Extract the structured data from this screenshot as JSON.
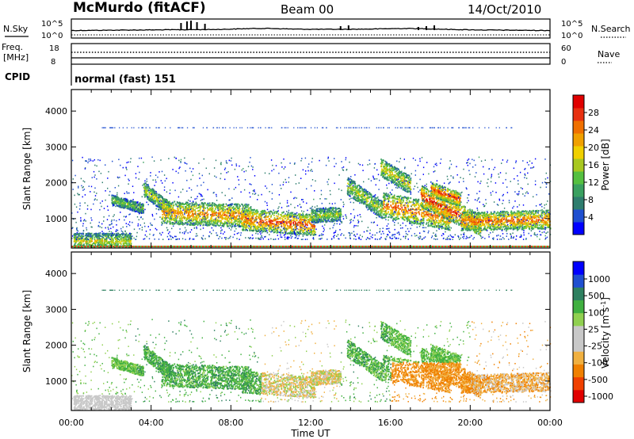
{
  "header": {
    "station": "McMurdo (fitACF)",
    "beam": "Beam 00",
    "date": "14/Oct/2010"
  },
  "top_panel": {
    "nsky_label": "N.Sky",
    "nsky_ticks": [
      "10^5",
      "10^0"
    ],
    "nsearch_label": "N.Search",
    "nsearch_ticks": [
      "10^5",
      "10^0"
    ],
    "freq_label_1": "Freq.",
    "freq_label_2": "[MHz]",
    "freq_ticks": [
      "18",
      "8"
    ],
    "nave_label": "Nave",
    "nave_ticks": [
      "60",
      "0"
    ],
    "cpid_label": "CPID",
    "cpid_value": "normal (fast) 151"
  },
  "colors": {
    "power": [
      "#0000ff",
      "#1f4fd0",
      "#2e7d6e",
      "#3aa060",
      "#55c040",
      "#a8c820",
      "#f0d000",
      "#f0a000",
      "#f07000",
      "#e83010",
      "#e00000"
    ],
    "velocity": [
      "#e00000",
      "#f04000",
      "#f08000",
      "#f0b040",
      "#c8c8c8",
      "#c8c8c8",
      "#90d050",
      "#40b040",
      "#2e8060",
      "#1f4fd0",
      "#0000ff"
    ]
  },
  "chart_data": [
    {
      "type": "heatmap",
      "name": "power",
      "ylabel": "Slant Range [km]",
      "yticks": [
        1000,
        2000,
        3000,
        4000
      ],
      "ylim": [
        180,
        4600
      ],
      "xlim_hours": [
        0,
        24
      ],
      "colorbar_label": "Power [dB]",
      "colorbar_ticks": [
        4,
        8,
        12,
        16,
        20,
        24,
        28
      ],
      "colorbar_range": [
        0,
        32
      ]
    },
    {
      "type": "heatmap",
      "name": "velocity",
      "ylabel": "Slant Range [km]",
      "xlabel": "Time UT",
      "yticks": [
        1000,
        2000,
        3000,
        4000
      ],
      "ylim": [
        180,
        4600
      ],
      "xticks": [
        "00:00",
        "04:00",
        "08:00",
        "12:00",
        "16:00",
        "20:00",
        "00:00"
      ],
      "xlim_hours": [
        0,
        24
      ],
      "colorbar_label": "Velocity [m s^-1]",
      "colorbar_ticks": [
        "1000",
        "500",
        "100",
        "25",
        "-25",
        "-100",
        "-500",
        "-1000"
      ]
    }
  ]
}
